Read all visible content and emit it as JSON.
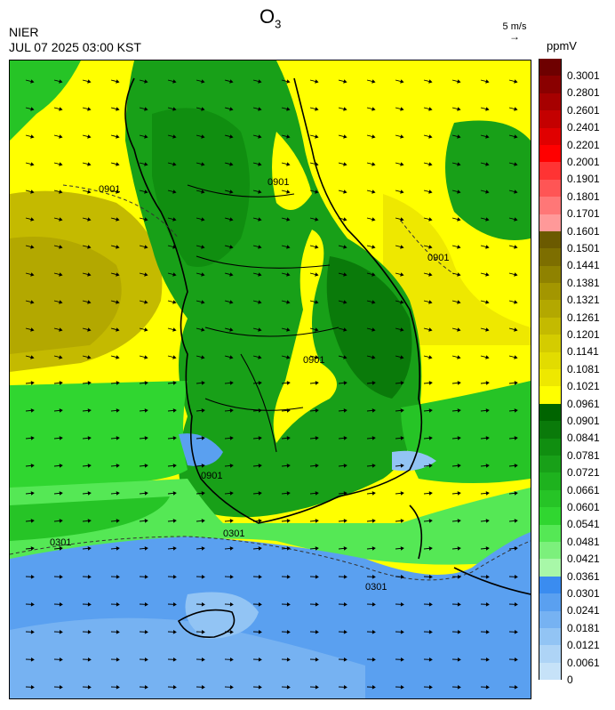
{
  "header": {
    "title": "O",
    "title_sub": "3",
    "org": "NIER",
    "timestamp": "JUL 07 2025 03:00 KST",
    "wind_ref_label": "5 m/s",
    "units": "ppmV"
  },
  "contour_labels": [
    "0901",
    "0901",
    "0901",
    "0901",
    "0301",
    "0301",
    "0301",
    "0901"
  ],
  "legend": {
    "labels": [
      "0.3001",
      "0.2801",
      "0.2601",
      "0.2401",
      "0.2201",
      "0.2001",
      "0.1901",
      "0.1801",
      "0.1701",
      "0.1601",
      "0.1501",
      "0.1441",
      "0.1381",
      "0.1321",
      "0.1261",
      "0.1201",
      "0.1141",
      "0.1081",
      "0.1021",
      "0.0961",
      "0.0901",
      "0.0841",
      "0.0781",
      "0.0721",
      "0.0661",
      "0.0601",
      "0.0541",
      "0.0481",
      "0.0421",
      "0.0361",
      "0.0301",
      "0.0241",
      "0.0181",
      "0.0121",
      "0.0061",
      "0"
    ],
    "colors": [
      "#6e0000",
      "#8a0000",
      "#a60000",
      "#c40000",
      "#e00000",
      "#ff0000",
      "#ff3333",
      "#ff5555",
      "#ff7777",
      "#ff9999",
      "#6b5a00",
      "#7d6e00",
      "#8f8200",
      "#a39600",
      "#b3a800",
      "#c4ba00",
      "#d4cc00",
      "#e2dc00",
      "#eee800",
      "#ffff00",
      "#006400",
      "#0a7a0a",
      "#108e10",
      "#18a018",
      "#1eb21e",
      "#26c426",
      "#30d630",
      "#55e855",
      "#7cf07c",
      "#a8f8a8",
      "#3a8cf0",
      "#5aa0f0",
      "#76b2f2",
      "#92c4f4",
      "#aed4f6",
      "#c6e2f8"
    ]
  }
}
